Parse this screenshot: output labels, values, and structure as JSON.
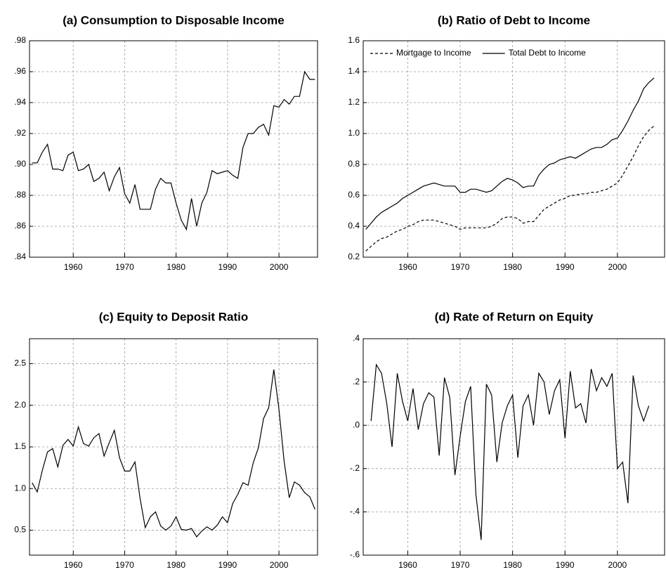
{
  "chart_data": [
    {
      "type": "line",
      "title": "(a) Consumption to Disposable Income",
      "x": [
        1952,
        1953,
        1954,
        1955,
        1956,
        1957,
        1958,
        1959,
        1960,
        1961,
        1962,
        1963,
        1964,
        1965,
        1966,
        1967,
        1968,
        1969,
        1970,
        1971,
        1972,
        1973,
        1974,
        1975,
        1976,
        1977,
        1978,
        1979,
        1980,
        1981,
        1982,
        1983,
        1984,
        1985,
        1986,
        1987,
        1988,
        1989,
        1990,
        1991,
        1992,
        1993,
        1994,
        1995,
        1996,
        1997,
        1998,
        1999,
        2000,
        2001,
        2002,
        2003,
        2004,
        2005,
        2006,
        2007
      ],
      "values": [
        0.901,
        0.901,
        0.908,
        0.913,
        0.897,
        0.897,
        0.896,
        0.906,
        0.908,
        0.896,
        0.897,
        0.9,
        0.889,
        0.891,
        0.895,
        0.883,
        0.892,
        0.898,
        0.881,
        0.875,
        0.887,
        0.871,
        0.871,
        0.871,
        0.884,
        0.891,
        0.888,
        0.888,
        0.875,
        0.864,
        0.858,
        0.878,
        0.86,
        0.875,
        0.882,
        0.896,
        0.894,
        0.895,
        0.896,
        0.893,
        0.891,
        0.911,
        0.92,
        0.92,
        0.924,
        0.926,
        0.919,
        0.938,
        0.937,
        0.942,
        0.939,
        0.944,
        0.944,
        0.96,
        0.955,
        0.955
      ],
      "color": "#000000",
      "xlim": [
        1951.5,
        2007.5
      ],
      "xticks": [
        1960,
        1970,
        1980,
        1990,
        2000
      ],
      "ylim": [
        0.84,
        0.98
      ],
      "yticks": [
        {
          "value": 0.84,
          "label": ".84"
        },
        {
          "value": 0.86,
          "label": ".86"
        },
        {
          "value": 0.88,
          "label": ".88"
        },
        {
          "value": 0.9,
          "label": ".90"
        },
        {
          "value": 0.92,
          "label": ".92"
        },
        {
          "value": 0.94,
          "label": ".94"
        },
        {
          "value": 0.96,
          "label": ".96"
        },
        {
          "value": 0.98,
          "label": ".98"
        }
      ],
      "grid": true
    },
    {
      "type": "line",
      "title": "(b) Ratio of Debt to Income",
      "x": [
        1952,
        1953,
        1954,
        1955,
        1956,
        1957,
        1958,
        1959,
        1960,
        1961,
        1962,
        1963,
        1964,
        1965,
        1966,
        1967,
        1968,
        1969,
        1970,
        1971,
        1972,
        1973,
        1974,
        1975,
        1976,
        1977,
        1978,
        1979,
        1980,
        1981,
        1982,
        1983,
        1984,
        1985,
        1986,
        1987,
        1988,
        1989,
        1990,
        1991,
        1992,
        1993,
        1994,
        1995,
        1996,
        1997,
        1998,
        1999,
        2000,
        2001,
        2002,
        2003,
        2004,
        2005,
        2006,
        2007
      ],
      "series": [
        {
          "name": "Mortgage to Income",
          "color": "#000000",
          "style": "dashed",
          "values": [
            0.24,
            0.27,
            0.3,
            0.32,
            0.33,
            0.35,
            0.37,
            0.38,
            0.4,
            0.41,
            0.43,
            0.44,
            0.44,
            0.44,
            0.43,
            0.42,
            0.41,
            0.4,
            0.38,
            0.39,
            0.39,
            0.39,
            0.39,
            0.39,
            0.4,
            0.42,
            0.45,
            0.46,
            0.46,
            0.45,
            0.42,
            0.43,
            0.43,
            0.47,
            0.51,
            0.53,
            0.55,
            0.57,
            0.58,
            0.6,
            0.6,
            0.61,
            0.61,
            0.62,
            0.62,
            0.63,
            0.64,
            0.66,
            0.68,
            0.73,
            0.79,
            0.85,
            0.92,
            0.98,
            1.02,
            1.05
          ]
        },
        {
          "name": "Total Debt to Income",
          "color": "#000000",
          "style": "solid",
          "values": [
            0.38,
            0.42,
            0.46,
            0.49,
            0.51,
            0.53,
            0.55,
            0.58,
            0.6,
            0.62,
            0.64,
            0.66,
            0.67,
            0.68,
            0.67,
            0.66,
            0.66,
            0.66,
            0.62,
            0.62,
            0.64,
            0.64,
            0.63,
            0.62,
            0.63,
            0.66,
            0.69,
            0.71,
            0.7,
            0.68,
            0.65,
            0.66,
            0.66,
            0.73,
            0.77,
            0.8,
            0.81,
            0.83,
            0.84,
            0.85,
            0.84,
            0.86,
            0.88,
            0.9,
            0.91,
            0.91,
            0.93,
            0.96,
            0.97,
            1.02,
            1.08,
            1.15,
            1.21,
            1.29,
            1.33,
            1.36
          ]
        }
      ],
      "legend": "upper left",
      "xlim": [
        1951.5,
        2009
      ],
      "xticks": [
        1960,
        1970,
        1980,
        1990,
        2000
      ],
      "ylim": [
        0.2,
        1.6
      ],
      "yticks": [
        0.2,
        0.4,
        0.6,
        0.8,
        {
          "value": 1.0,
          "label": "1.0"
        },
        1.2,
        1.4,
        1.6
      ],
      "grid": true
    },
    {
      "type": "line",
      "title": "(c) Equity to Deposit Ratio",
      "x": [
        1952,
        1953,
        1954,
        1955,
        1956,
        1957,
        1958,
        1959,
        1960,
        1961,
        1962,
        1963,
        1964,
        1965,
        1966,
        1967,
        1968,
        1969,
        1970,
        1971,
        1972,
        1973,
        1974,
        1975,
        1976,
        1977,
        1978,
        1979,
        1980,
        1981,
        1982,
        1983,
        1984,
        1985,
        1986,
        1987,
        1988,
        1989,
        1990,
        1991,
        1992,
        1993,
        1994,
        1995,
        1996,
        1997,
        1998,
        1999,
        2000,
        2001,
        2002,
        2003,
        2004,
        2005,
        2006,
        2007
      ],
      "values": [
        1.07,
        0.96,
        1.22,
        1.44,
        1.48,
        1.26,
        1.52,
        1.59,
        1.51,
        1.74,
        1.54,
        1.51,
        1.61,
        1.66,
        1.39,
        1.55,
        1.7,
        1.37,
        1.21,
        1.21,
        1.32,
        0.88,
        0.53,
        0.66,
        0.72,
        0.55,
        0.5,
        0.55,
        0.66,
        0.51,
        0.5,
        0.52,
        0.42,
        0.49,
        0.54,
        0.5,
        0.56,
        0.66,
        0.59,
        0.82,
        0.93,
        1.07,
        1.04,
        1.31,
        1.49,
        1.84,
        1.97,
        2.43,
        1.95,
        1.33,
        0.89,
        1.08,
        1.04,
        0.95,
        0.9,
        0.75
      ],
      "color": "#000000",
      "xlim": [
        1951.5,
        2007.5
      ],
      "xticks": [
        1960,
        1970,
        1980,
        1990,
        2000
      ],
      "ylim": [
        0.2,
        2.8
      ],
      "yticks": [
        0.5,
        {
          "value": 1.0,
          "label": "1.0"
        },
        1.5,
        {
          "value": 2.0,
          "label": "2.0"
        },
        2.5
      ],
      "grid": true
    },
    {
      "type": "line",
      "title": "(d) Rate of Return on Equity",
      "x": [
        1953,
        1954,
        1955,
        1956,
        1957,
        1958,
        1959,
        1960,
        1961,
        1962,
        1963,
        1964,
        1965,
        1966,
        1967,
        1968,
        1969,
        1970,
        1971,
        1972,
        1973,
        1974,
        1975,
        1976,
        1977,
        1978,
        1979,
        1980,
        1981,
        1982,
        1983,
        1984,
        1985,
        1986,
        1987,
        1988,
        1989,
        1990,
        1991,
        1992,
        1993,
        1994,
        1995,
        1996,
        1997,
        1998,
        1999,
        2000,
        2001,
        2002,
        2003,
        2004,
        2005,
        2006
      ],
      "values": [
        0.02,
        0.28,
        0.24,
        0.1,
        -0.1,
        0.24,
        0.11,
        0.02,
        0.17,
        -0.02,
        0.1,
        0.15,
        0.13,
        -0.14,
        0.22,
        0.13,
        -0.23,
        -0.05,
        0.11,
        0.18,
        -0.32,
        -0.53,
        0.19,
        0.14,
        -0.17,
        0.01,
        0.09,
        0.14,
        -0.15,
        0.09,
        0.14,
        0.0,
        0.24,
        0.2,
        0.05,
        0.16,
        0.21,
        -0.06,
        0.25,
        0.08,
        0.1,
        0.01,
        0.26,
        0.16,
        0.22,
        0.18,
        0.24,
        -0.2,
        -0.17,
        -0.36,
        0.23,
        0.09,
        0.02,
        0.09
      ],
      "color": "#000000",
      "xlim": [
        1951.5,
        2009
      ],
      "xticks": [
        1960,
        1970,
        1980,
        1990,
        2000
      ],
      "ylim": [
        -0.6,
        0.4
      ],
      "yticks": [
        {
          "value": -0.6,
          "label": "-.6"
        },
        {
          "value": -0.4,
          "label": "-.4"
        },
        {
          "value": -0.2,
          "label": "-.2"
        },
        {
          "value": 0.0,
          "label": ".0"
        },
        {
          "value": 0.2,
          "label": ".2"
        },
        {
          "value": 0.4,
          "label": ".4"
        }
      ],
      "grid": true
    }
  ]
}
